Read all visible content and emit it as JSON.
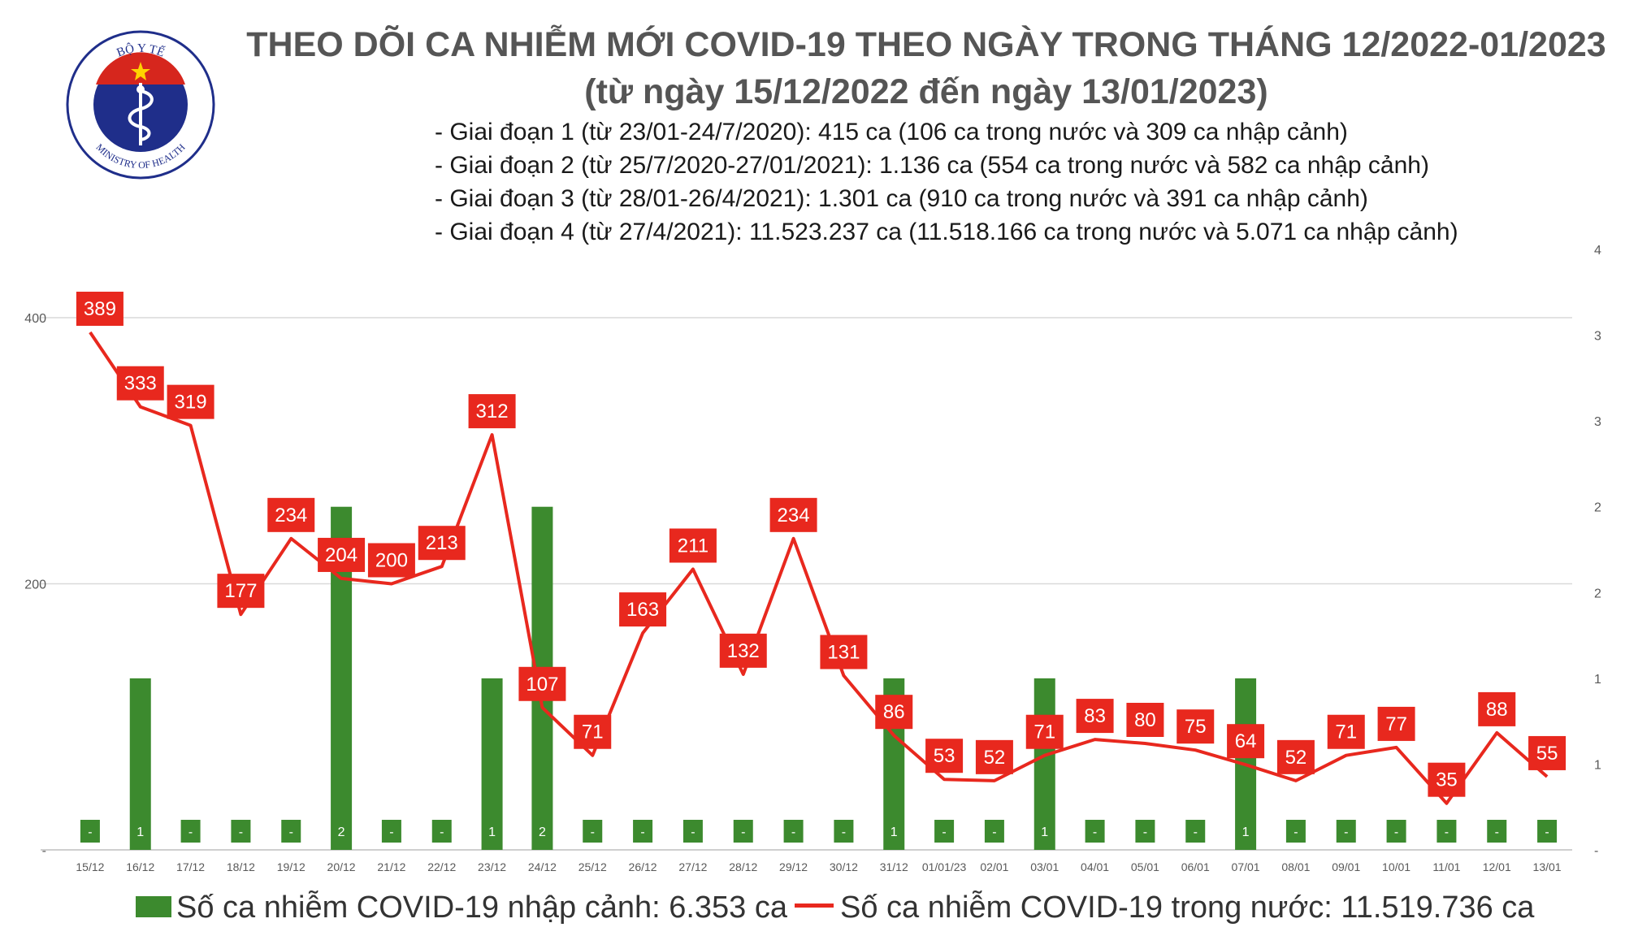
{
  "logo": {
    "top_text": "BỘ Y TẾ",
    "bottom_text": "MINISTRY OF HEALTH"
  },
  "title_line1": "THEO DÕI CA NHIỄM MỚI COVID-19 THEO NGÀY TRONG THÁNG 12/2022-01/2023",
  "title_line2": "(từ ngày 15/12/2022 đến ngày 13/01/2023)",
  "stages": [
    "- Giai đoạn 1 (từ 23/01-24/7/2020): 415 ca (106 ca trong nước và 309 ca nhập cảnh)",
    "- Giai đoạn 2 (từ 25/7/2020-27/01/2021): 1.136 ca (554 ca trong nước và 582 ca nhập cảnh)",
    "- Giai đoạn 3 (từ 28/01-26/4/2021): 1.301 ca (910 ca trong nước và 391 ca nhập cảnh)",
    "- Giai đoạn 4 (từ 27/4/2021): 11.523.237 ca (11.518.166 ca trong nước và 5.071 ca nhập cảnh)"
  ],
  "colors": {
    "bar": "#3c8a2e",
    "line": "#e8281e",
    "label_box": "#e8281e",
    "grid": "#d9d9d9",
    "title": "#555555"
  },
  "chart_data": {
    "type": "bar+line",
    "categories": [
      "15/12",
      "16/12",
      "17/12",
      "18/12",
      "19/12",
      "20/12",
      "21/12",
      "22/12",
      "23/12",
      "24/12",
      "25/12",
      "26/12",
      "27/12",
      "28/12",
      "29/12",
      "30/12",
      "31/12",
      "01/01/23",
      "02/01",
      "03/01",
      "04/01",
      "05/01",
      "06/01",
      "07/01",
      "08/01",
      "09/01",
      "10/01",
      "11/01",
      "12/01",
      "13/01"
    ],
    "series": [
      {
        "name": "Số ca nhiễm COVID-19 nhập cảnh: 6.353 ca",
        "type": "bar",
        "axis": "right",
        "values": [
          0,
          1,
          0,
          0,
          0,
          2,
          0,
          0,
          1,
          2,
          0,
          0,
          0,
          0,
          0,
          0,
          1,
          0,
          0,
          1,
          0,
          0,
          0,
          1,
          0,
          0,
          0,
          0,
          0,
          0
        ],
        "labels": [
          "-",
          "1",
          "-",
          "-",
          "-",
          "2",
          "-",
          "-",
          "1",
          "2",
          "-",
          "-",
          "-",
          "-",
          "-",
          "-",
          "1",
          "-",
          "-",
          "1",
          "-",
          "-",
          "-",
          "1",
          "-",
          "-",
          "-",
          "-",
          "-",
          "-"
        ]
      },
      {
        "name": "Số ca nhiễm COVID-19 trong nước: 11.519.736 ca",
        "type": "line",
        "axis": "left",
        "values": [
          389,
          333,
          319,
          177,
          234,
          204,
          200,
          213,
          312,
          107,
          71,
          163,
          211,
          132,
          234,
          131,
          86,
          53,
          52,
          71,
          83,
          80,
          75,
          64,
          52,
          71,
          77,
          35,
          88,
          55
        ]
      }
    ],
    "y_left": {
      "range": [
        0,
        400
      ],
      "ticks": [
        0,
        200,
        400
      ],
      "tick_labels": [
        "-",
        "200",
        "400"
      ]
    },
    "y_right": {
      "range": [
        0,
        3.5
      ],
      "ticks": [
        0,
        0.5,
        1,
        1.5,
        2,
        2.5,
        3,
        3.5
      ],
      "tick_labels": [
        "-",
        "1",
        "1",
        "2",
        "2",
        "3",
        "3",
        "4"
      ],
      "top_label": "4"
    },
    "grid": true,
    "legend_position": "bottom"
  }
}
